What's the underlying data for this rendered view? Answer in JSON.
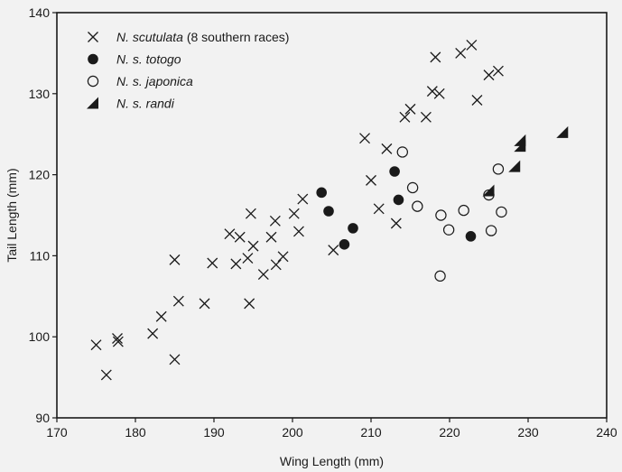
{
  "chart_data": {
    "type": "scatter",
    "title": "",
    "xlabel": "Wing Length (mm)",
    "ylabel": "Tail Length (mm)",
    "xlim": [
      170,
      240
    ],
    "ylim": [
      90,
      140
    ],
    "xticks": [
      "170",
      "180",
      "190",
      "200",
      "210",
      "220",
      "230",
      "240"
    ],
    "yticks": [
      "90",
      "100",
      "110",
      "120",
      "130",
      "140"
    ],
    "grid": false,
    "legend_position": "top-left",
    "series": [
      {
        "name_italic": "N. scutulata",
        "name_suffix": " (8 southern races)",
        "marker": "x",
        "color": "#1a1a1a",
        "points": [
          [
            175,
            99
          ],
          [
            176.3,
            95.3
          ],
          [
            177.7,
            99.8
          ],
          [
            177.8,
            99.4
          ],
          [
            182.2,
            100.4
          ],
          [
            183.3,
            102.5
          ],
          [
            185,
            109.5
          ],
          [
            185,
            97.2
          ],
          [
            185.5,
            104.4
          ],
          [
            188.8,
            104.1
          ],
          [
            189.8,
            109.1
          ],
          [
            192,
            112.7
          ],
          [
            192.8,
            109
          ],
          [
            193.3,
            112.3
          ],
          [
            194.3,
            109.7
          ],
          [
            194.5,
            104.1
          ],
          [
            194.7,
            115.2
          ],
          [
            195,
            111.2
          ],
          [
            196.3,
            107.7
          ],
          [
            197.3,
            112.3
          ],
          [
            197.8,
            114.3
          ],
          [
            197.9,
            108.9
          ],
          [
            198.8,
            109.9
          ],
          [
            200.2,
            115.2
          ],
          [
            200.8,
            113
          ],
          [
            201.3,
            117
          ],
          [
            205.2,
            110.7
          ],
          [
            209.2,
            124.5
          ],
          [
            210,
            119.3
          ],
          [
            211,
            115.8
          ],
          [
            212,
            123.2
          ],
          [
            213.2,
            114
          ],
          [
            214.3,
            127.1
          ],
          [
            215,
            128.1
          ],
          [
            218.2,
            134.5
          ],
          [
            218.7,
            130
          ],
          [
            217,
            127.1
          ],
          [
            217.8,
            130.3
          ],
          [
            221.4,
            135
          ],
          [
            222.8,
            136
          ],
          [
            223.5,
            129.2
          ],
          [
            225,
            132.3
          ],
          [
            226.2,
            132.8
          ]
        ]
      },
      {
        "name_italic": "N. s. totogo",
        "name_suffix": "",
        "marker": "filled-circle",
        "color": "#1a1a1a",
        "points": [
          [
            203.7,
            117.8
          ],
          [
            204.6,
            115.5
          ],
          [
            206.6,
            111.4
          ],
          [
            207.7,
            113.4
          ],
          [
            213,
            120.4
          ],
          [
            213.5,
            116.9
          ],
          [
            222.7,
            112.4
          ]
        ]
      },
      {
        "name_italic": "N. s. japonica",
        "name_suffix": "",
        "marker": "open-circle",
        "color": "#1a1a1a",
        "points": [
          [
            214,
            122.8
          ],
          [
            215.3,
            118.4
          ],
          [
            215.9,
            116.1
          ],
          [
            218.9,
            115
          ],
          [
            219.9,
            113.2
          ],
          [
            221.8,
            115.6
          ],
          [
            218.8,
            107.5
          ],
          [
            225,
            117.5
          ],
          [
            225.3,
            113.1
          ],
          [
            226.2,
            120.7
          ],
          [
            226.6,
            115.4
          ]
        ]
      },
      {
        "name_italic": "N. s. randi",
        "name_suffix": "",
        "marker": "filled-triangle",
        "color": "#1a1a1a",
        "points": [
          [
            225,
            118
          ],
          [
            228.3,
            121
          ],
          [
            229,
            123.5
          ],
          [
            229,
            124.2
          ],
          [
            234.4,
            125.2
          ]
        ]
      }
    ]
  }
}
